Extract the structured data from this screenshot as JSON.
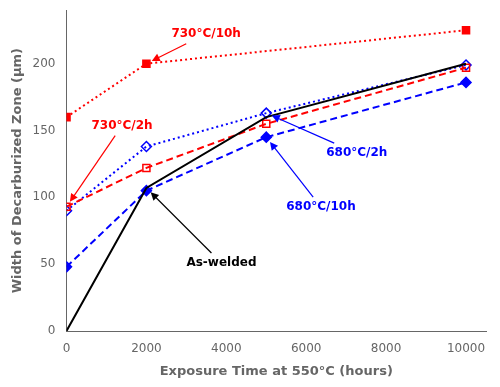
{
  "chart_data": {
    "type": "line",
    "xlabel": "Exposure Time at 550°C (hours)",
    "ylabel": "Width of Decarburized Zone (μm)",
    "xlim": [
      0,
      10500
    ],
    "ylim": [
      0,
      240
    ],
    "xticks": [
      0,
      2000,
      4000,
      6000,
      8000,
      10000
    ],
    "yticks": [
      0,
      50,
      100,
      150,
      200
    ],
    "grid": false,
    "series": [
      {
        "name": "As-welded",
        "color": "#000000",
        "line_style": "solid",
        "marker": "none",
        "x": [
          0,
          2000,
          5000,
          10000
        ],
        "values": [
          0,
          107,
          160,
          200
        ]
      },
      {
        "name": "730°C/10h",
        "color": "#ff0000",
        "line_style": "dotted",
        "marker": "filled_square",
        "x": [
          0,
          2000,
          10000
        ],
        "values": [
          160,
          200,
          225
        ]
      },
      {
        "name": "730°C/2h",
        "color": "#ff0000",
        "line_style": "dashed",
        "marker": "open_square",
        "x": [
          0,
          2000,
          5000,
          10000
        ],
        "values": [
          93,
          122,
          155,
          197
        ]
      },
      {
        "name": "680°C/2h",
        "color": "#0000ff",
        "line_style": "dotted",
        "marker": "open_diamond",
        "x": [
          0,
          2000,
          5000,
          10000
        ],
        "values": [
          90,
          138,
          163,
          199
        ]
      },
      {
        "name": "680°C/10h",
        "color": "#0000ff",
        "line_style": "dashed",
        "marker": "filled_diamond",
        "x": [
          0,
          2000,
          5000,
          10000
        ],
        "values": [
          48,
          105,
          145,
          186
        ]
      }
    ],
    "annotations": [
      {
        "text": "730°C/10h",
        "color": "#ff0000"
      },
      {
        "text": "730°C/2h",
        "color": "#ff0000"
      },
      {
        "text": "680°C/2h",
        "color": "#0000ff"
      },
      {
        "text": "680°C/10h",
        "color": "#0000ff"
      },
      {
        "text": "As-welded",
        "color": "#000000"
      }
    ]
  }
}
